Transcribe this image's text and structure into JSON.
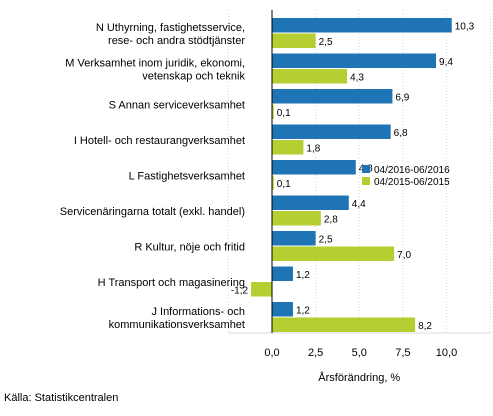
{
  "chart_data": {
    "type": "bar",
    "orientation": "horizontal",
    "categories": [
      [
        "N Uthyrning, fastighetsservice,",
        "rese- och andra stödtjänster"
      ],
      [
        "M Verksamhet inom juridik, ekonomi,",
        "vetenskap och teknik"
      ],
      [
        "S Annan serviceverksamhet"
      ],
      [
        "I Hotell- och restaurangverksamhet"
      ],
      [
        "L Fastighetsverksamhet"
      ],
      [
        "Servicenäringarna totalt (exkl. handel)"
      ],
      [
        "R Kultur, nöje och fritid"
      ],
      [
        "H Transport och magasinering"
      ],
      [
        "J Informations- och",
        "kommunikationsverksamhet"
      ]
    ],
    "series": [
      {
        "name": "04/2016-06/2016",
        "color": "#1f74b5",
        "values": [
          10.3,
          9.4,
          6.9,
          6.8,
          4.8,
          4.4,
          2.5,
          1.2,
          1.2
        ],
        "labels": [
          "10,3",
          "9,4",
          "6,9",
          "6,8",
          "4,8",
          "4,4",
          "2,5",
          "1,2",
          "1,2"
        ]
      },
      {
        "name": "04/2015-06/2015",
        "color": "#b5cf32",
        "values": [
          2.5,
          4.3,
          0.1,
          1.8,
          0.1,
          2.8,
          7.0,
          -1.2,
          8.2
        ],
        "labels": [
          "2,5",
          "4,3",
          "0,1",
          "1,8",
          "0,1",
          "2,8",
          "7,0",
          "-1,2",
          "8,2"
        ]
      }
    ],
    "xlim": [
      -2.5,
      12.5
    ],
    "xticks": [
      0,
      2.5,
      5,
      7.5,
      10
    ],
    "xtick_labels": [
      "0,0",
      "2,5",
      "5,0",
      "7,5",
      "10,0"
    ],
    "xlabel": "Årsförändring, %",
    "legend_position": "right, beside L Fastighetsverksamhet",
    "grid": "vertical gridlines"
  },
  "source": "Källa: Statistikcentralen"
}
